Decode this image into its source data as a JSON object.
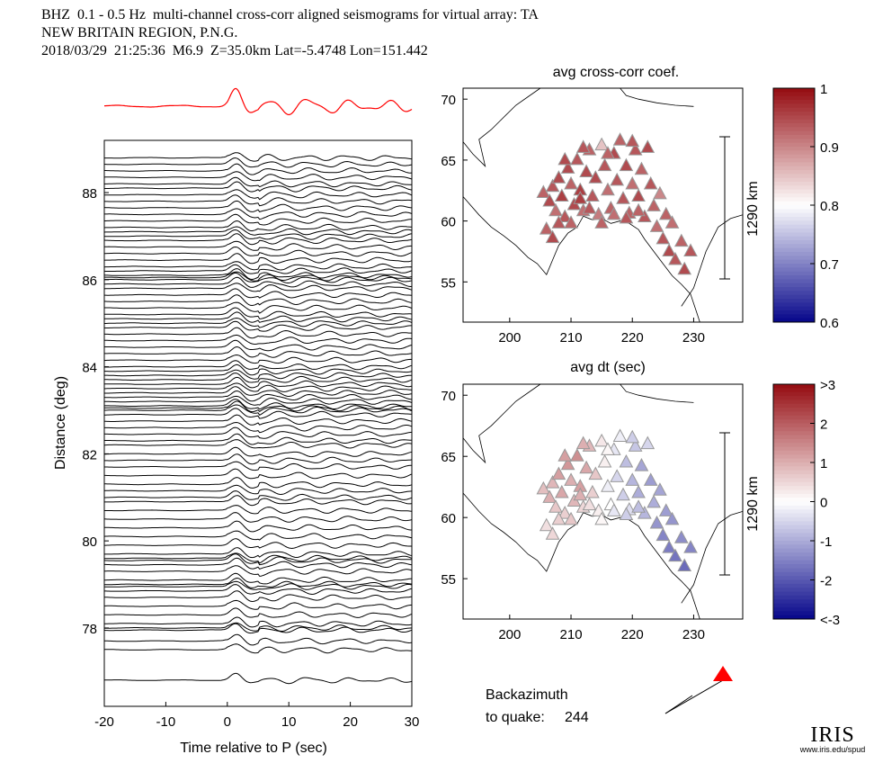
{
  "header": {
    "line1": "BHZ  0.1 - 0.5 Hz  multi-channel cross-corr aligned seismograms for virtual array: TA",
    "line2": "NEW BRITAIN REGION, P.N.G.",
    "line3": "2018/03/29  21:25:36  M6.9  Z=35.0km Lat=-5.4748 Lon=151.442"
  },
  "backazimuth": {
    "label1": "Backazimuth",
    "label2": "to quake:",
    "value": "244",
    "degrees": 244
  },
  "logo": {
    "text": "IRIS",
    "url": "www.iris.edu/spud"
  },
  "colors": {
    "trace": "#000000",
    "stack": "#ff0000",
    "quake": "#ff0000",
    "red": "#8b0000",
    "blue": "#00008b"
  },
  "chart_data": [
    {
      "type": "line",
      "title": "",
      "xlabel": "Time relative to P (sec)",
      "ylabel": "Distance (deg)",
      "xlim": [
        -20,
        30
      ],
      "ylim": [
        76.2,
        89.2
      ],
      "xticks": [
        -20,
        -10,
        0,
        10,
        20,
        30
      ],
      "yticks": [
        78,
        80,
        82,
        84,
        86,
        88
      ],
      "stack_trace": {
        "color": "#ff0000",
        "peaks_sec": [
          1.5,
          7.5,
          14,
          18.5,
          24,
          29
        ]
      },
      "trace_distances": [
        76.8,
        77.5,
        77.7,
        77.95,
        78.0,
        78.1,
        78.3,
        78.5,
        78.7,
        78.85,
        78.95,
        79.0,
        79.1,
        79.3,
        79.45,
        79.55,
        79.6,
        79.7,
        79.9,
        80.1,
        80.3,
        80.5,
        80.7,
        80.9,
        81.0,
        81.15,
        81.3,
        81.5,
        81.7,
        81.85,
        82.0,
        82.2,
        82.3,
        82.45,
        82.6,
        82.75,
        82.9,
        83.0,
        83.05,
        83.1,
        83.2,
        83.3,
        83.4,
        83.5,
        83.6,
        83.7,
        83.8,
        83.9,
        84.0,
        84.15,
        84.3,
        84.45,
        84.6,
        84.75,
        84.9,
        85.0,
        85.1,
        85.2,
        85.35,
        85.5,
        85.65,
        85.8,
        85.9,
        86.0,
        86.05,
        86.1,
        86.2,
        86.3,
        86.45,
        86.6,
        86.75,
        86.9,
        87.0,
        87.1,
        87.2,
        87.35,
        87.5,
        87.65,
        87.8,
        87.95,
        88.1,
        88.2,
        88.35,
        88.5,
        88.65,
        88.8
      ]
    },
    {
      "type": "scatter",
      "title": "avg cross-corr coef.",
      "xlim": [
        192.4,
        238
      ],
      "ylim": [
        51.7,
        70.9
      ],
      "xticks": [
        200,
        210,
        220,
        230
      ],
      "yticks": [
        55,
        60,
        65,
        70
      ],
      "scale_bar": "1290 km",
      "colorbar": {
        "min": 0.6,
        "max": 1,
        "ticks": [
          "1",
          "0.9",
          "0.8",
          "0.7",
          "0.6"
        ]
      }
    },
    {
      "type": "scatter",
      "title": "avg dt (sec)",
      "xlim": [
        192.4,
        238
      ],
      "ylim": [
        51.7,
        70.9
      ],
      "xticks": [
        200,
        210,
        220,
        230
      ],
      "yticks": [
        55,
        60,
        65,
        70
      ],
      "scale_bar": "1290 km",
      "colorbar": {
        "min": -3,
        "max": 3,
        "ticks": [
          ">3",
          "2",
          "1",
          "0",
          "-1",
          "-2",
          "<-3"
        ]
      }
    }
  ],
  "stations": [
    [
      205.5,
      62.3,
      0.93,
      0.8
    ],
    [
      206.5,
      61.6,
      0.95,
      1.0
    ],
    [
      207,
      62.8,
      0.94,
      0.9
    ],
    [
      207.5,
      60.8,
      0.92,
      0.7
    ],
    [
      208,
      63.5,
      0.95,
      1.2
    ],
    [
      208.5,
      62,
      0.96,
      1.1
    ],
    [
      209,
      60.3,
      0.94,
      0.6
    ],
    [
      209.5,
      64.3,
      0.95,
      1.3
    ],
    [
      210,
      63,
      0.93,
      1.0
    ],
    [
      210.5,
      61.3,
      0.95,
      0.9
    ],
    [
      211,
      65,
      0.94,
      1.4
    ],
    [
      211.5,
      62.5,
      0.96,
      1.2
    ],
    [
      212,
      60.8,
      0.92,
      0.5
    ],
    [
      212.5,
      64,
      0.95,
      1.1
    ],
    [
      213,
      65.8,
      0.93,
      0.9
    ],
    [
      213.5,
      62,
      0.94,
      0.6
    ],
    [
      214,
      63.5,
      0.95,
      0.7
    ],
    [
      214.5,
      60.5,
      0.91,
      0.2
    ],
    [
      215,
      66.2,
      0.85,
      0.3
    ],
    [
      215.5,
      64.5,
      0.94,
      0.2
    ],
    [
      216,
      62.5,
      0.92,
      -0.2
    ],
    [
      216.5,
      61,
      0.93,
      0.0
    ],
    [
      217,
      65.5,
      0.95,
      -0.3
    ],
    [
      217.5,
      63.3,
      0.94,
      -0.5
    ],
    [
      218,
      66.6,
      0.93,
      -0.2
    ],
    [
      218.5,
      61.8,
      0.94,
      -0.6
    ],
    [
      219,
      64.5,
      0.95,
      -0.8
    ],
    [
      219.5,
      60.6,
      0.93,
      -0.4
    ],
    [
      220,
      63,
      0.92,
      -0.9
    ],
    [
      220.5,
      65.8,
      0.94,
      -0.7
    ],
    [
      221,
      62,
      0.95,
      -1.0
    ],
    [
      221.5,
      64.2,
      0.93,
      -1.1
    ],
    [
      222,
      60.3,
      0.94,
      -0.9
    ],
    [
      222.5,
      66,
      0.95,
      -0.5
    ],
    [
      223,
      63,
      0.94,
      -1.2
    ],
    [
      223.5,
      61.2,
      0.93,
      -1.0
    ],
    [
      224,
      59.5,
      0.92,
      -1.3
    ],
    [
      224.5,
      62.2,
      0.9,
      -1.1
    ],
    [
      225,
      58.5,
      0.94,
      -1.5
    ],
    [
      225.5,
      60.5,
      0.93,
      -1.2
    ],
    [
      226,
      57.5,
      0.95,
      -1.6
    ],
    [
      226.5,
      59.8,
      0.92,
      -1.3
    ],
    [
      227,
      56.8,
      0.94,
      -1.7
    ],
    [
      228,
      58.3,
      0.93,
      -1.4
    ],
    [
      228.5,
      56,
      0.95,
      -1.8
    ],
    [
      229.5,
      57.5,
      0.94,
      -1.5
    ],
    [
      206,
      59.3,
      0.93,
      0.4
    ],
    [
      207,
      58.6,
      0.95,
      0.5
    ],
    [
      208,
      59.8,
      0.94,
      0.6
    ],
    [
      210,
      59.8,
      0.93,
      0.7
    ],
    [
      211.5,
      61.8,
      0.96,
      1.0
    ],
    [
      213,
      61,
      0.94,
      0.4
    ],
    [
      215,
      59.8,
      0.93,
      0.1
    ],
    [
      217,
      60.5,
      0.92,
      -0.3
    ],
    [
      219,
      60.2,
      0.94,
      -0.6
    ],
    [
      221,
      60.8,
      0.93,
      -0.8
    ],
    [
      209,
      65,
      0.95,
      1.2
    ],
    [
      212,
      66,
      0.94,
      1.0
    ],
    [
      216,
      65.5,
      0.93,
      0.1
    ],
    [
      220,
      66.5,
      0.94,
      -0.6
    ]
  ]
}
